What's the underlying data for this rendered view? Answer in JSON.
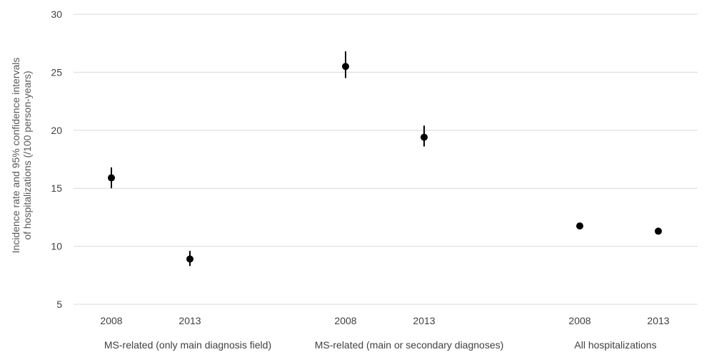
{
  "chart_data": {
    "type": "scatter",
    "title": "",
    "ylabel_lines": [
      "Incidence rate and 95% confidence intervals",
      "of hospitalizations (/100 person-years)"
    ],
    "ylim": [
      5,
      30
    ],
    "yticks": [
      5,
      10,
      15,
      20,
      25,
      30
    ],
    "grid": true,
    "groups": [
      {
        "label": "MS-related (only main diagnosis field)",
        "years": [
          "2008",
          "2013"
        ]
      },
      {
        "label": "MS-related (main or secondary diagnoses)",
        "years": [
          "2008",
          "2013"
        ]
      },
      {
        "label": "All hospitalizations",
        "years": [
          "2008",
          "2013"
        ]
      }
    ],
    "points": [
      {
        "group": 0,
        "year": "2008",
        "value": 15.9,
        "ci": [
          15.0,
          16.8
        ]
      },
      {
        "group": 0,
        "year": "2013",
        "value": 8.9,
        "ci": [
          8.3,
          9.6
        ]
      },
      {
        "group": 1,
        "year": "2008",
        "value": 25.5,
        "ci": [
          24.5,
          26.8
        ]
      },
      {
        "group": 1,
        "year": "2013",
        "value": 19.4,
        "ci": [
          18.6,
          20.4
        ]
      },
      {
        "group": 2,
        "year": "2008",
        "value": 11.75,
        "ci": null
      },
      {
        "group": 2,
        "year": "2013",
        "value": 11.3,
        "ci": null
      }
    ],
    "colors": {
      "marker": "#000000",
      "grid": "#d9d9d9",
      "text": "#404040"
    }
  }
}
